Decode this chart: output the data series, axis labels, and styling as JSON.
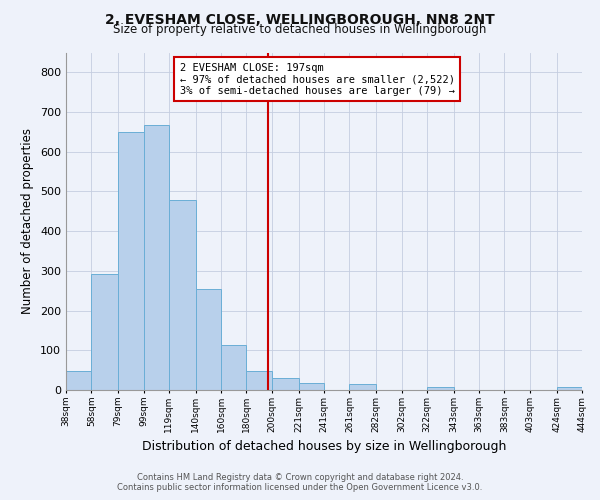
{
  "title": "2, EVESHAM CLOSE, WELLINGBOROUGH, NN8 2NT",
  "subtitle": "Size of property relative to detached houses in Wellingborough",
  "xlabel": "Distribution of detached houses by size in Wellingborough",
  "ylabel": "Number of detached properties",
  "bar_edges": [
    38,
    58,
    79,
    99,
    119,
    140,
    160,
    180,
    200,
    221,
    241,
    261,
    282,
    302,
    322,
    343,
    363,
    383,
    403,
    424,
    444
  ],
  "bar_heights": [
    47,
    293,
    651,
    668,
    478,
    254,
    114,
    49,
    30,
    17,
    0,
    15,
    0,
    0,
    8,
    0,
    0,
    0,
    0,
    7
  ],
  "bar_color": "#b8d0eb",
  "bar_edge_color": "#6aaed6",
  "vline_x": 197,
  "vline_color": "#cc0000",
  "annotation_text": "2 EVESHAM CLOSE: 197sqm\n← 97% of detached houses are smaller (2,522)\n3% of semi-detached houses are larger (79) →",
  "annotation_box_color": "white",
  "annotation_box_edge_color": "#cc0000",
  "ylim": [
    0,
    850
  ],
  "yticks": [
    0,
    100,
    200,
    300,
    400,
    500,
    600,
    700,
    800
  ],
  "tick_labels": [
    "38sqm",
    "58sqm",
    "79sqm",
    "99sqm",
    "119sqm",
    "140sqm",
    "160sqm",
    "180sqm",
    "200sqm",
    "221sqm",
    "241sqm",
    "261sqm",
    "282sqm",
    "302sqm",
    "322sqm",
    "343sqm",
    "363sqm",
    "383sqm",
    "403sqm",
    "424sqm",
    "444sqm"
  ],
  "footer_line1": "Contains HM Land Registry data © Crown copyright and database right 2024.",
  "footer_line2": "Contains public sector information licensed under the Open Government Licence v3.0.",
  "bg_color": "#eef2fa",
  "plot_bg_color": "#eef2fa",
  "grid_color": "#c5cde0"
}
